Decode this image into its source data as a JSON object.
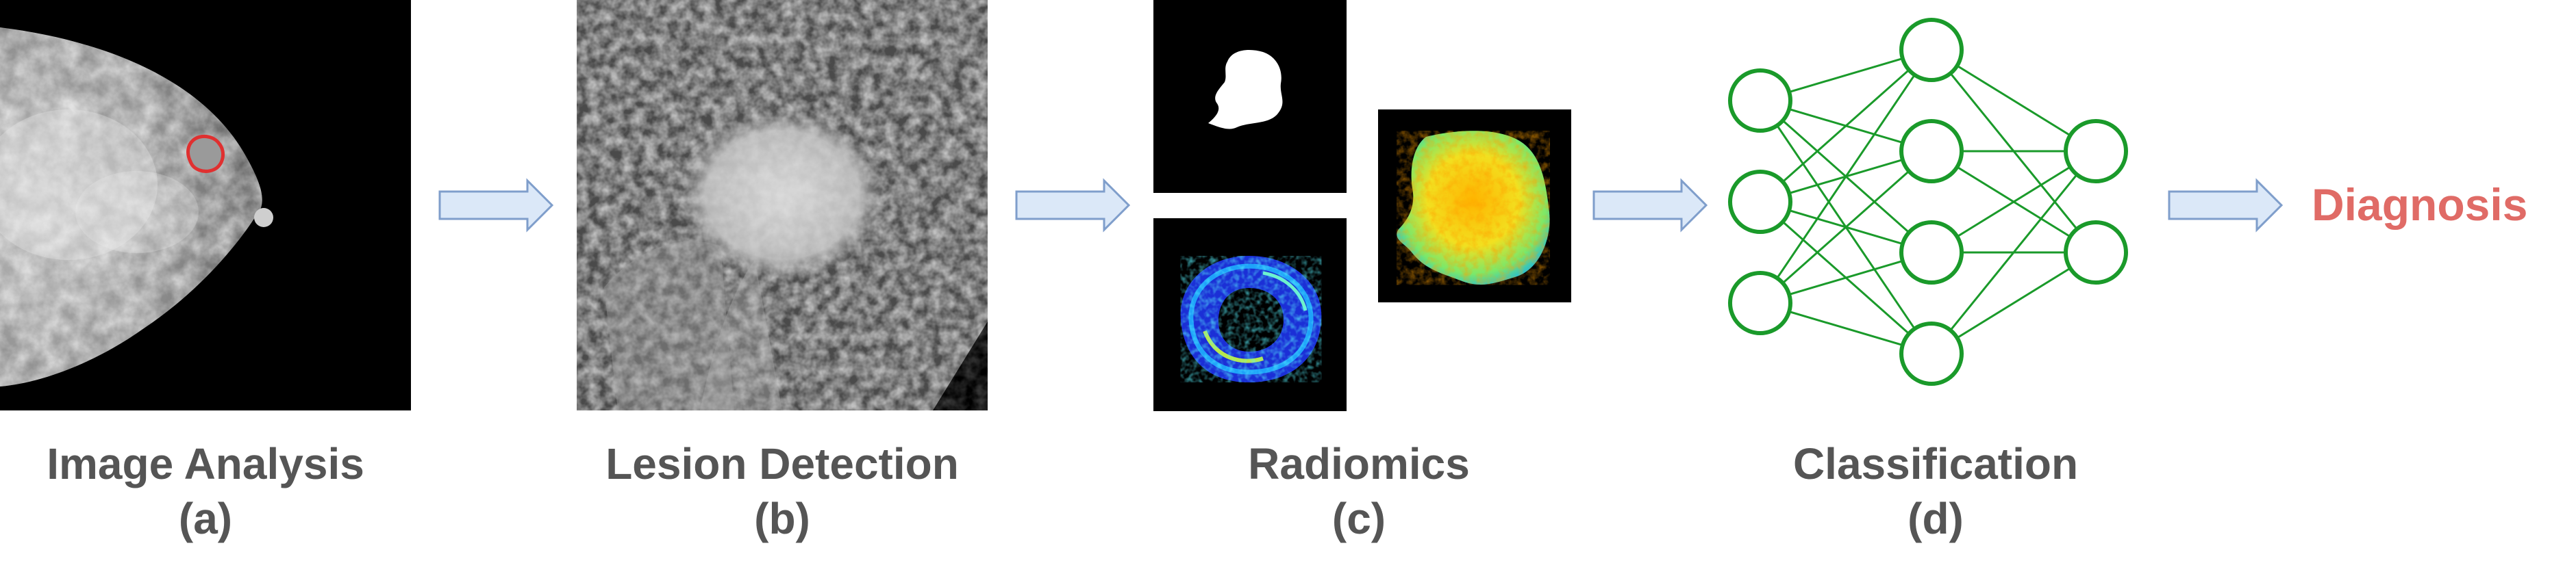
{
  "stages": [
    {
      "title": "Image Analysis",
      "letter": "(a)"
    },
    {
      "title": "Lesion Detection",
      "letter": "(b)"
    },
    {
      "title": "Radiomics",
      "letter": "(c)"
    },
    {
      "title": "Classification",
      "letter": "(d)"
    }
  ],
  "output": {
    "label": "Diagnosis",
    "color": "#e06b66"
  },
  "colors": {
    "label": "#555555",
    "arrow_fill": "#dbe8f8",
    "arrow_stroke": "#7f9ecb",
    "network": "#1a9a2a",
    "lesion_outline": "#e03030"
  },
  "network": {
    "layer_sizes": [
      3,
      4,
      2
    ]
  }
}
